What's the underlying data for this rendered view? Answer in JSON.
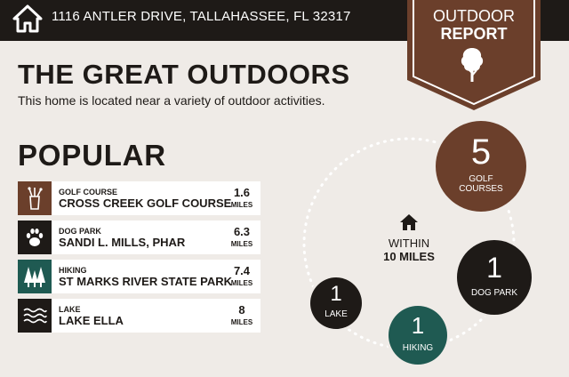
{
  "header": {
    "address": "1116 ANTLER DRIVE, TALLAHASSEE, FL 32317",
    "icon": "home-icon"
  },
  "badge": {
    "line1": "OUTDOOR",
    "line2": "REPORT",
    "icon": "tree-icon",
    "color": "#6b3f2b"
  },
  "main": {
    "title": "THE GREAT OUTDOORS",
    "subtitle": "This home is located near a variety of outdoor activities."
  },
  "popular": {
    "heading": "POPULAR",
    "items": [
      {
        "category": "GOLF COURSE",
        "name": "CROSS CREEK GOLF COURSE",
        "miles": "1.6",
        "unit": "MILES",
        "icon": "golf-bag-icon",
        "color": "#6b3f2b"
      },
      {
        "category": "DOG PARK",
        "name": "SANDI L. MILLS, PHAR",
        "miles": "6.3",
        "unit": "MILES",
        "icon": "paw-icon",
        "color": "#1e1a17"
      },
      {
        "category": "HIKING",
        "name": "ST MARKS RIVER STATE PARK",
        "miles": "7.4",
        "unit": "MILES",
        "icon": "trees-icon",
        "color": "#1f5a52"
      },
      {
        "category": "LAKE",
        "name": "LAKE ELLA",
        "miles": "8",
        "unit": "MILES",
        "icon": "waves-icon",
        "color": "#1e1a17"
      }
    ]
  },
  "radius": {
    "within": "WITHIN",
    "distance": "10 MILES",
    "icon": "home-icon"
  },
  "counts": [
    {
      "count": "5",
      "line1": "GOLF",
      "line2": "COURSES",
      "color": "#6b3f2b"
    },
    {
      "count": "1",
      "label": "DOG PARK",
      "color": "#1e1a17"
    },
    {
      "count": "1",
      "label": "HIKING",
      "color": "#1f5a52"
    },
    {
      "count": "1",
      "label": "LAKE",
      "color": "#1e1a17"
    }
  ]
}
